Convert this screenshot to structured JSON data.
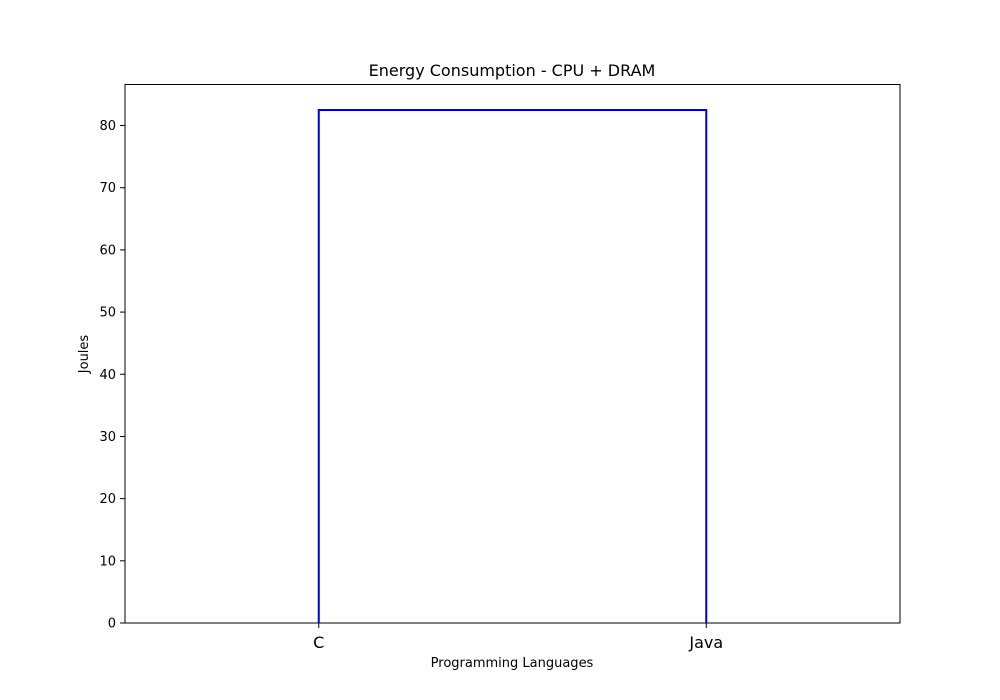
{
  "chart_data": {
    "type": "line",
    "title": "Energy Consumption - CPU + DRAM",
    "xlabel": "Programming Languages",
    "ylabel": "Joules",
    "categories": [
      "C",
      "Java"
    ],
    "series": [
      {
        "name": "CPU + DRAM",
        "color": "#0000cc",
        "points": [
          {
            "x": "C",
            "y": 0
          },
          {
            "x": "C",
            "y": 82.5
          },
          {
            "x": "Java",
            "y": 82.5
          },
          {
            "x": "Java",
            "y": 0
          }
        ]
      }
    ],
    "ylim": [
      0,
      86.6
    ],
    "yticks": [
      0,
      10,
      20,
      30,
      40,
      50,
      60,
      70,
      80
    ],
    "grid": false,
    "legend": "none"
  }
}
